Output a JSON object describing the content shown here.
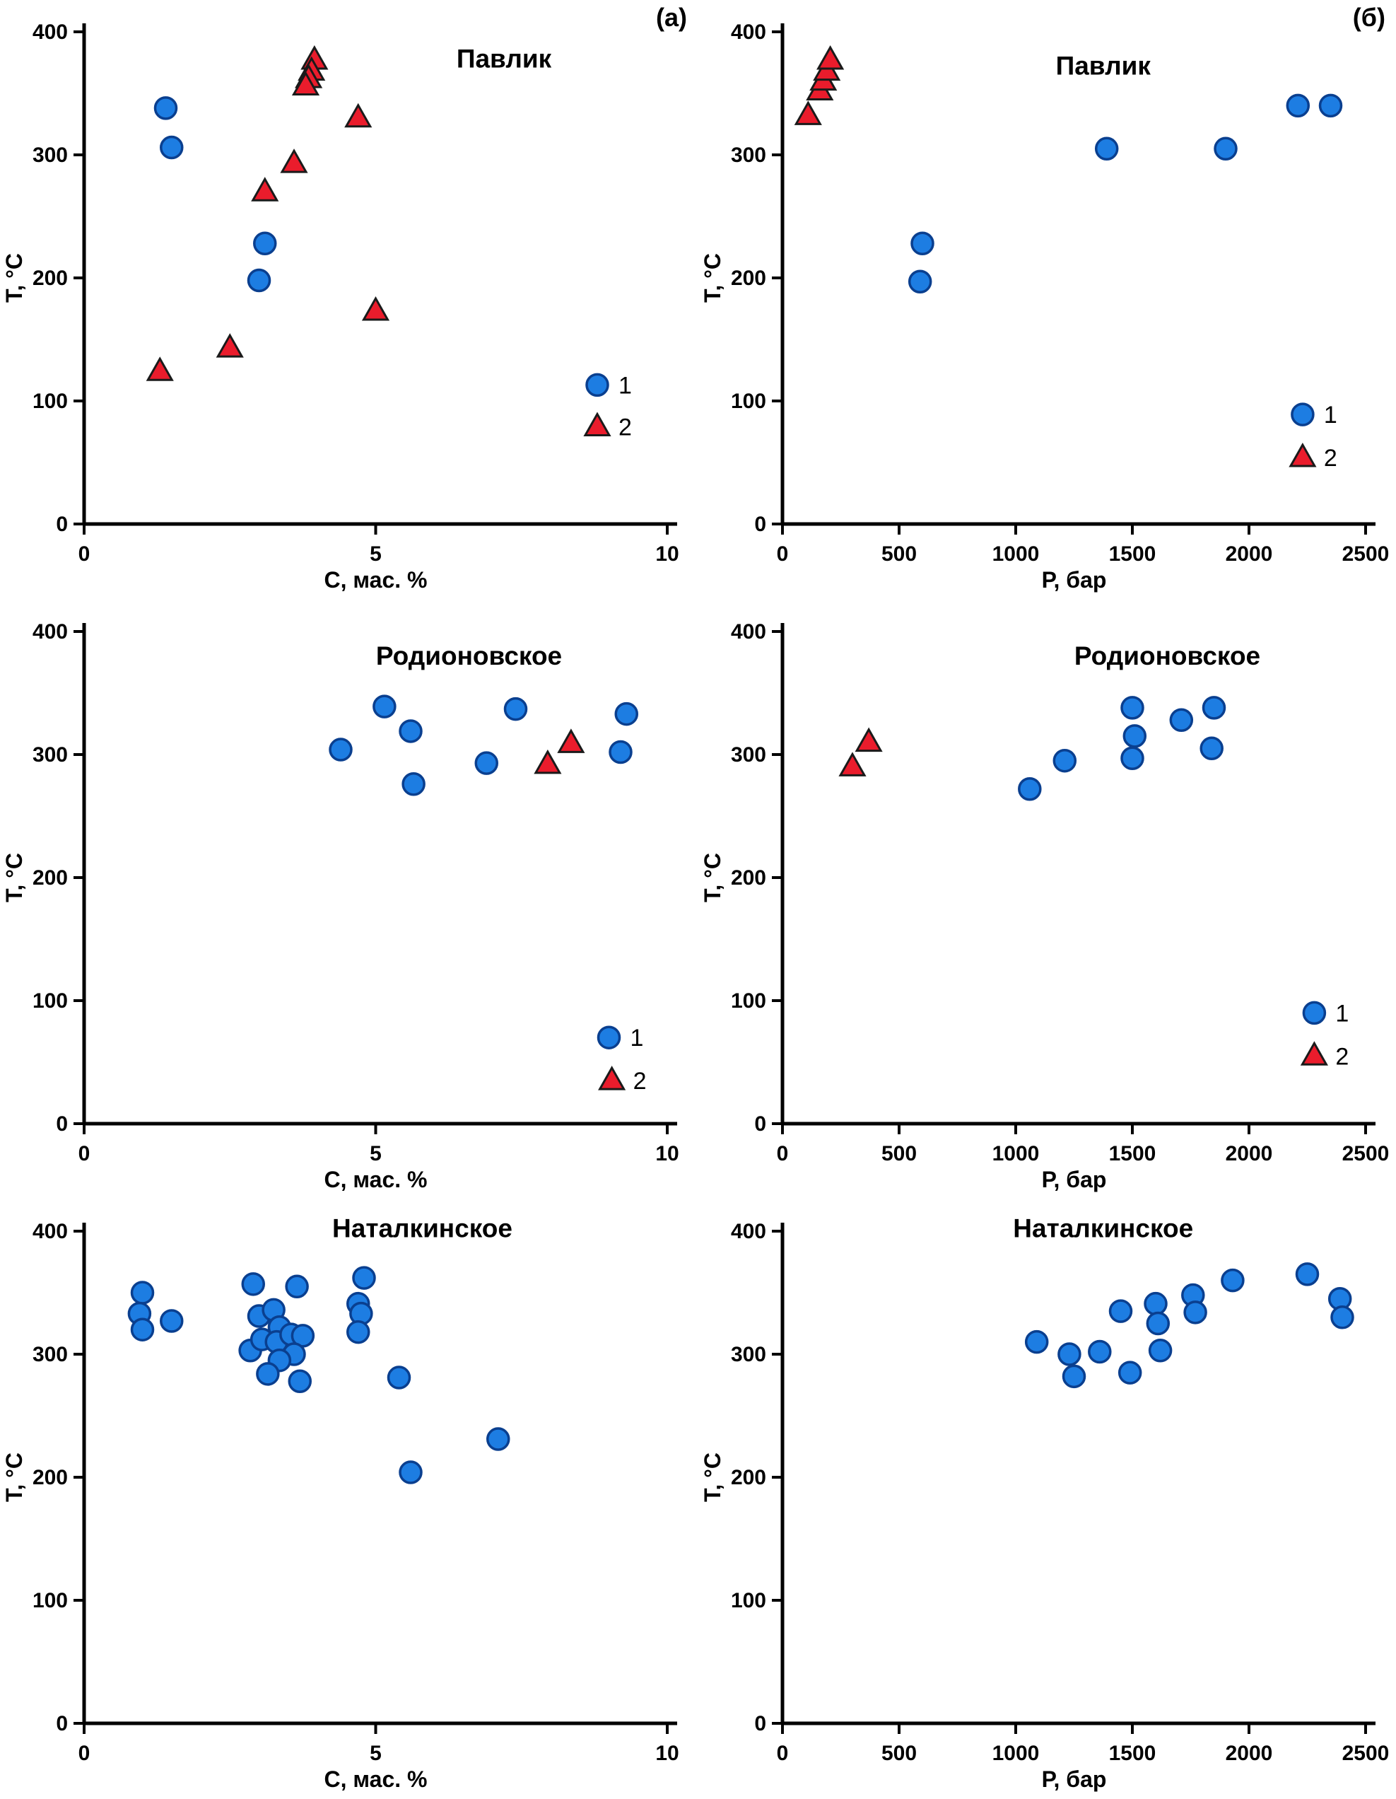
{
  "figure": {
    "background": "#ffffff",
    "legend_labels": [
      "1",
      "2"
    ]
  },
  "colors": {
    "circle_fill": "#1d7de2",
    "circle_stroke": "#0a3f8f",
    "triangle_fill": "#ea1c2c",
    "triangle_stroke": "#1a1a1a",
    "axis": "#000000",
    "text": "#000000"
  },
  "chart_data": [
    {
      "type": "scatter",
      "title": "Павлик",
      "corner_label": "(а)",
      "xlabel": "С, мас. %",
      "ylabel": "Т, °С",
      "xlim": [
        0,
        10
      ],
      "ylim": [
        0,
        400
      ],
      "xticks": [
        0,
        5,
        10
      ],
      "yticks": [
        0,
        100,
        200,
        300,
        400
      ],
      "grid": false,
      "title_fx": 0.72,
      "title_fy": 0.055,
      "legend": {
        "items": [
          {
            "marker": "circle",
            "label": "1",
            "x": 8.8,
            "y": 113
          },
          {
            "marker": "triangle",
            "label": "2",
            "x": 8.8,
            "y": 79
          }
        ]
      },
      "series": [
        {
          "name": "1",
          "marker": "circle",
          "points": [
            [
              1.4,
              338
            ],
            [
              1.5,
              306
            ],
            [
              3.1,
              228
            ],
            [
              3.0,
              198
            ]
          ]
        },
        {
          "name": "2",
          "marker": "triangle",
          "points": [
            [
              1.3,
              124
            ],
            [
              2.5,
              143
            ],
            [
              3.1,
              270
            ],
            [
              3.6,
              293
            ],
            [
              3.95,
              377
            ],
            [
              3.9,
              368
            ],
            [
              3.85,
              362
            ],
            [
              3.8,
              356
            ],
            [
              4.7,
              330
            ],
            [
              5.0,
              173
            ]
          ]
        }
      ]
    },
    {
      "type": "scatter",
      "title": "Павлик",
      "corner_label": "(б)",
      "xlabel": "Р, бар",
      "ylabel": "Т, °С",
      "xlim": [
        0,
        2500
      ],
      "ylim": [
        0,
        400
      ],
      "xticks": [
        0,
        500,
        1000,
        1500,
        2000,
        2500
      ],
      "yticks": [
        0,
        100,
        200,
        300,
        400
      ],
      "grid": false,
      "title_fx": 0.55,
      "title_fy": 0.07,
      "legend": {
        "items": [
          {
            "marker": "circle",
            "label": "1",
            "x": 2230,
            "y": 89
          },
          {
            "marker": "triangle",
            "label": "2",
            "x": 2230,
            "y": 54
          }
        ]
      },
      "series": [
        {
          "name": "1",
          "marker": "circle",
          "points": [
            [
              600,
              228
            ],
            [
              590,
              197
            ],
            [
              1390,
              305
            ],
            [
              1900,
              305
            ],
            [
              2210,
              340
            ],
            [
              2350,
              340
            ]
          ]
        },
        {
          "name": "2",
          "marker": "triangle",
          "points": [
            [
              110,
              332
            ],
            [
              160,
              352
            ],
            [
              175,
              360
            ],
            [
              190,
              368
            ],
            [
              205,
              377
            ]
          ]
        }
      ]
    },
    {
      "type": "scatter",
      "title": "Родионовское",
      "corner_label": "",
      "xlabel": "С, мас. %",
      "ylabel": "Т, °С",
      "xlim": [
        0,
        10
      ],
      "ylim": [
        0,
        400
      ],
      "xticks": [
        0,
        5,
        10
      ],
      "yticks": [
        0,
        100,
        200,
        300,
        400
      ],
      "grid": false,
      "title_fx": 0.66,
      "title_fy": 0.05,
      "legend": {
        "items": [
          {
            "marker": "circle",
            "label": "1",
            "x": 9.0,
            "y": 70
          },
          {
            "marker": "triangle",
            "label": "2",
            "x": 9.05,
            "y": 35
          }
        ]
      },
      "series": [
        {
          "name": "1",
          "marker": "circle",
          "points": [
            [
              4.4,
              304
            ],
            [
              5.15,
              339
            ],
            [
              5.6,
              319
            ],
            [
              5.65,
              276
            ],
            [
              6.9,
              293
            ],
            [
              7.4,
              337
            ],
            [
              9.3,
              333
            ],
            [
              9.2,
              302
            ]
          ]
        },
        {
          "name": "2",
          "marker": "triangle",
          "points": [
            [
              7.95,
              292
            ],
            [
              8.35,
              309
            ]
          ]
        }
      ]
    },
    {
      "type": "scatter",
      "title": "Родионовское",
      "corner_label": "",
      "xlabel": "Р, бар",
      "ylabel": "Т, °С",
      "xlim": [
        0,
        2500
      ],
      "ylim": [
        0,
        400
      ],
      "xticks": [
        0,
        500,
        1000,
        1500,
        2000,
        2500
      ],
      "yticks": [
        0,
        100,
        200,
        300,
        400
      ],
      "grid": false,
      "title_fx": 0.66,
      "title_fy": 0.05,
      "legend": {
        "items": [
          {
            "marker": "circle",
            "label": "1",
            "x": 2280,
            "y": 90
          },
          {
            "marker": "triangle",
            "label": "2",
            "x": 2280,
            "y": 55
          }
        ]
      },
      "series": [
        {
          "name": "1",
          "marker": "circle",
          "points": [
            [
              1060,
              272
            ],
            [
              1210,
              295
            ],
            [
              1500,
              338
            ],
            [
              1510,
              315
            ],
            [
              1500,
              297
            ],
            [
              1710,
              328
            ],
            [
              1850,
              338
            ],
            [
              1840,
              305
            ]
          ]
        },
        {
          "name": "2",
          "marker": "triangle",
          "points": [
            [
              300,
              290
            ],
            [
              370,
              310
            ]
          ]
        }
      ]
    },
    {
      "type": "scatter",
      "title": "Наталкинское",
      "corner_label": "",
      "xlabel": "С, мас. %",
      "ylabel": "Т, °С",
      "xlim": [
        0,
        10
      ],
      "ylim": [
        0,
        400
      ],
      "xticks": [
        0,
        5,
        10
      ],
      "yticks": [
        0,
        100,
        200,
        300,
        400
      ],
      "grid": false,
      "title_fx": 0.58,
      "title_fy": -0.005,
      "legend": null,
      "series": [
        {
          "name": "1",
          "marker": "circle",
          "points": [
            [
              1.0,
              350
            ],
            [
              0.95,
              333
            ],
            [
              1.0,
              320
            ],
            [
              1.5,
              327
            ],
            [
              2.9,
              357
            ],
            [
              3.65,
              355
            ],
            [
              3.0,
              331
            ],
            [
              3.25,
              336
            ],
            [
              3.35,
              322
            ],
            [
              2.85,
              303
            ],
            [
              3.05,
              312
            ],
            [
              3.3,
              310
            ],
            [
              3.55,
              316
            ],
            [
              3.75,
              315
            ],
            [
              3.6,
              300
            ],
            [
              3.35,
              295
            ],
            [
              3.15,
              284
            ],
            [
              3.7,
              278
            ],
            [
              4.8,
              362
            ],
            [
              4.7,
              341
            ],
            [
              4.75,
              333
            ],
            [
              4.7,
              318
            ],
            [
              5.4,
              281
            ],
            [
              5.6,
              204
            ],
            [
              7.1,
              231
            ]
          ]
        }
      ]
    },
    {
      "type": "scatter",
      "title": "Наталкинское",
      "corner_label": "",
      "xlabel": "Р, бар",
      "ylabel": "Т, °С",
      "xlim": [
        0,
        2500
      ],
      "ylim": [
        0,
        400
      ],
      "xticks": [
        0,
        500,
        1000,
        1500,
        2000,
        2500
      ],
      "yticks": [
        0,
        100,
        200,
        300,
        400
      ],
      "grid": false,
      "title_fx": 0.55,
      "title_fy": -0.005,
      "legend": null,
      "series": [
        {
          "name": "1",
          "marker": "circle",
          "points": [
            [
              1090,
              310
            ],
            [
              1230,
              300
            ],
            [
              1250,
              282
            ],
            [
              1360,
              302
            ],
            [
              1450,
              335
            ],
            [
              1490,
              285
            ],
            [
              1600,
              341
            ],
            [
              1610,
              325
            ],
            [
              1620,
              303
            ],
            [
              1760,
              348
            ],
            [
              1770,
              334
            ],
            [
              1930,
              360
            ],
            [
              2250,
              365
            ],
            [
              2390,
              345
            ],
            [
              2400,
              330
            ]
          ]
        }
      ]
    }
  ]
}
